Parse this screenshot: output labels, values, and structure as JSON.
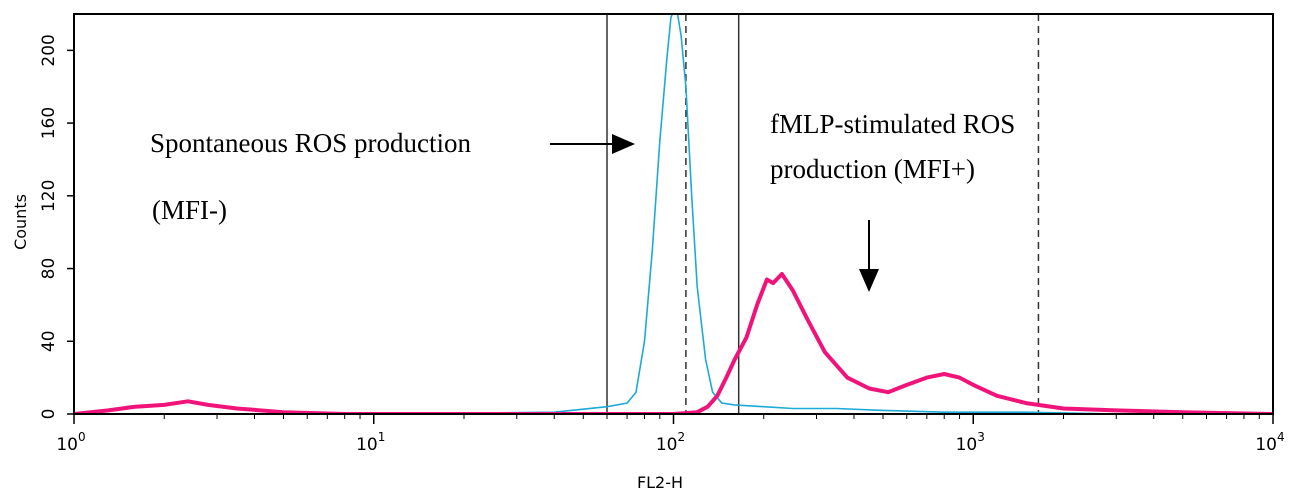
{
  "chart_data": {
    "type": "line",
    "xlabel": "FL2-H",
    "ylabel": "Counts",
    "xscale": "log",
    "xlim": [
      1,
      10000
    ],
    "ylim": [
      0,
      220
    ],
    "grid": false,
    "x_ticks": [
      {
        "base": "10",
        "exp": "0"
      },
      {
        "base": "10",
        "exp": "1"
      },
      {
        "base": "10",
        "exp": "2"
      },
      {
        "base": "10",
        "exp": "3"
      },
      {
        "base": "10",
        "exp": "4"
      }
    ],
    "y_ticks": [
      "0",
      "40",
      "80",
      "120",
      "160",
      "200"
    ],
    "series": [
      {
        "color": "#1fa9d6",
        "points": [
          [
            1,
            0
          ],
          [
            10,
            0
          ],
          [
            40,
            1
          ],
          [
            60,
            4
          ],
          [
            70,
            6
          ],
          [
            75,
            12
          ],
          [
            80,
            40
          ],
          [
            85,
            90
          ],
          [
            90,
            150
          ],
          [
            95,
            195
          ],
          [
            98,
            218
          ],
          [
            102,
            225
          ],
          [
            106,
            208
          ],
          [
            110,
            180
          ],
          [
            115,
            120
          ],
          [
            120,
            70
          ],
          [
            128,
            30
          ],
          [
            135,
            12
          ],
          [
            145,
            6
          ],
          [
            160,
            5
          ],
          [
            200,
            4
          ],
          [
            250,
            3
          ],
          [
            350,
            3
          ],
          [
            500,
            2
          ],
          [
            800,
            1
          ],
          [
            1500,
            1
          ],
          [
            3000,
            0
          ],
          [
            10000,
            0
          ]
        ]
      },
      {
        "color": "#f0147a",
        "points": [
          [
            1,
            0
          ],
          [
            1.3,
            2
          ],
          [
            1.6,
            4
          ],
          [
            2,
            5
          ],
          [
            2.4,
            7
          ],
          [
            2.8,
            5
          ],
          [
            3.5,
            3
          ],
          [
            5,
            1
          ],
          [
            8,
            0
          ],
          [
            20,
            0
          ],
          [
            60,
            0
          ],
          [
            100,
            0
          ],
          [
            120,
            1
          ],
          [
            130,
            4
          ],
          [
            140,
            10
          ],
          [
            150,
            20
          ],
          [
            160,
            30
          ],
          [
            175,
            42
          ],
          [
            190,
            60
          ],
          [
            205,
            74
          ],
          [
            215,
            72
          ],
          [
            230,
            77
          ],
          [
            250,
            68
          ],
          [
            280,
            52
          ],
          [
            320,
            34
          ],
          [
            380,
            20
          ],
          [
            450,
            14
          ],
          [
            520,
            12
          ],
          [
            600,
            16
          ],
          [
            700,
            20
          ],
          [
            800,
            22
          ],
          [
            900,
            20
          ],
          [
            1000,
            16
          ],
          [
            1200,
            10
          ],
          [
            1500,
            6
          ],
          [
            2000,
            3
          ],
          [
            3000,
            2
          ],
          [
            5000,
            1
          ],
          [
            10000,
            0
          ]
        ]
      }
    ],
    "gates": [
      {
        "x": 60,
        "style": "solid"
      },
      {
        "x": 110,
        "style": "dashed"
      },
      {
        "x": 165,
        "style": "solid"
      },
      {
        "x": 1650,
        "style": "dashed"
      }
    ],
    "annotations": [
      {
        "id": "spontaneous",
        "lines": [
          "Spontaneous ROS production"
        ],
        "arrow": "right"
      },
      {
        "id": "mfi-minus",
        "lines": [
          "(MFI-)"
        ]
      },
      {
        "id": "fmlp",
        "lines": [
          "fMLP-stimulated  ROS",
          "production  (MFI+)"
        ],
        "arrow": "down"
      }
    ]
  }
}
